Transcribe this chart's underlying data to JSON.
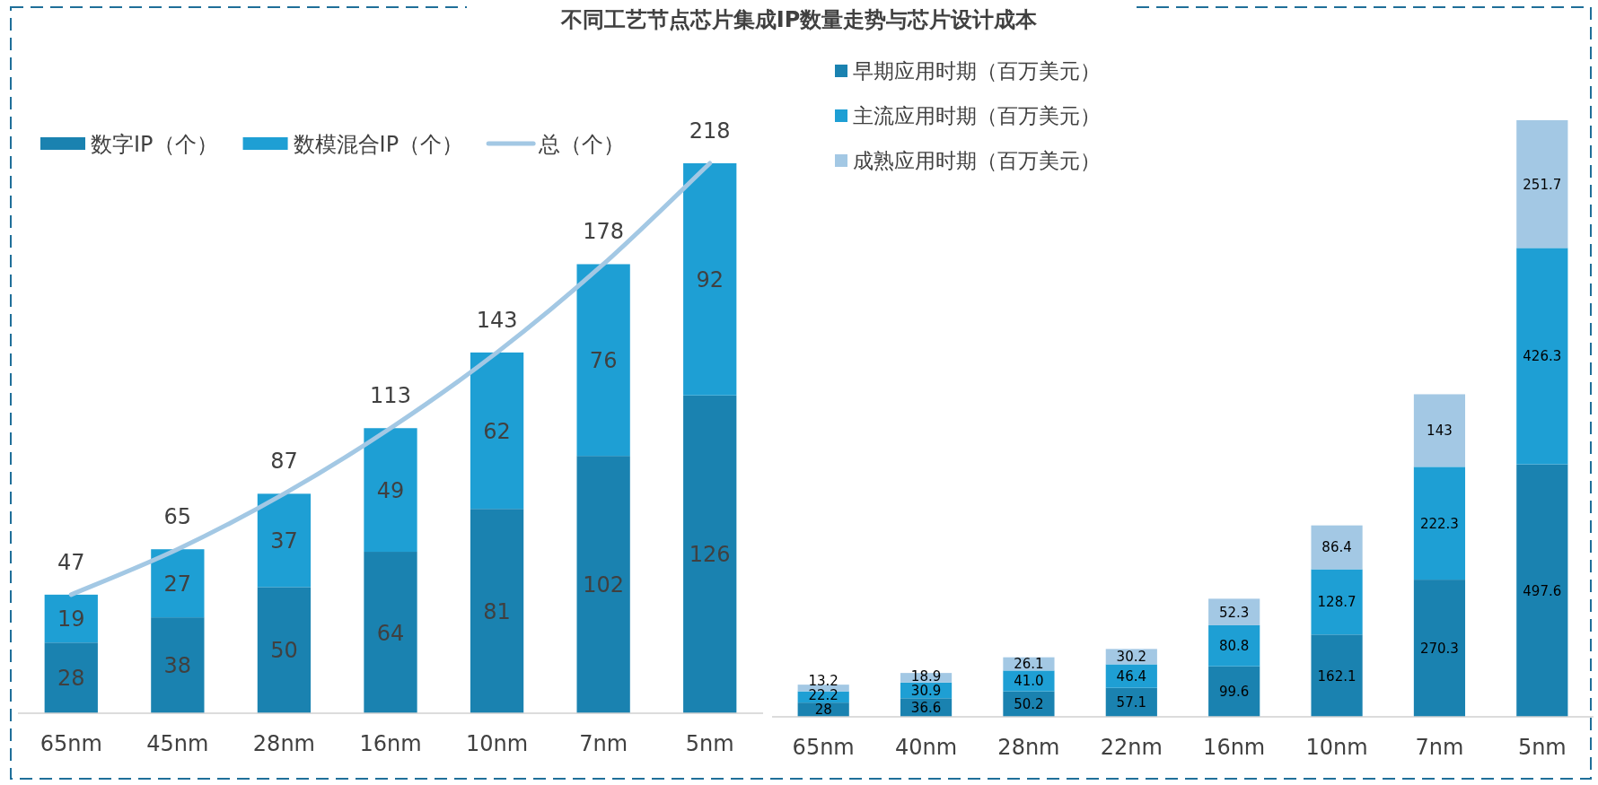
{
  "chart_data": [
    {
      "type": "bar",
      "title": "不同工艺节点芯片集成IP数量走势与芯片设计成本",
      "categories": [
        "65nm",
        "45nm",
        "28nm",
        "16nm",
        "10nm",
        "7nm",
        "5nm"
      ],
      "stacked": true,
      "data_labels": true,
      "legend": "top left",
      "series": [
        {
          "name": "数字IP（个）",
          "color": "#1a82b0",
          "values": [
            28,
            38,
            50,
            64,
            81,
            102,
            126
          ]
        },
        {
          "name": "数模混合IP（个）",
          "color": "#1e9fd4",
          "values": [
            19,
            27,
            37,
            49,
            62,
            76,
            92
          ]
        },
        {
          "name": "总（个）",
          "type": "line",
          "color": "#a3c8e4",
          "values": [
            47,
            65,
            87,
            113,
            143,
            178,
            218
          ]
        }
      ]
    },
    {
      "type": "bar",
      "categories": [
        "65nm",
        "40nm",
        "28nm",
        "22nm",
        "16nm",
        "10nm",
        "7nm",
        "5nm"
      ],
      "stacked": true,
      "data_labels": true,
      "legend": "top left",
      "series": [
        {
          "name": "早期应用时期（百万美元）",
          "color": "#1a82b0",
          "values": [
            28,
            36.6,
            50.2,
            57.1,
            99.6,
            162.1,
            270.3,
            497.6
          ]
        },
        {
          "name": "主流应用时期（百万美元）",
          "color": "#1e9fd4",
          "values": [
            22.2,
            30.9,
            41.0,
            46.4,
            80.8,
            128.7,
            222.3,
            426.3
          ],
          "value_labels": [
            "22.2",
            "30.9",
            "41.0",
            "46.4",
            "80.8",
            "128.7",
            "222.3",
            "426.3"
          ]
        },
        {
          "name": "成熟应用时期（百万美元）",
          "color": "#a3c8e4",
          "values": [
            13.2,
            18.9,
            26.1,
            30.2,
            52.3,
            86.4,
            143,
            251.7
          ]
        }
      ]
    }
  ]
}
